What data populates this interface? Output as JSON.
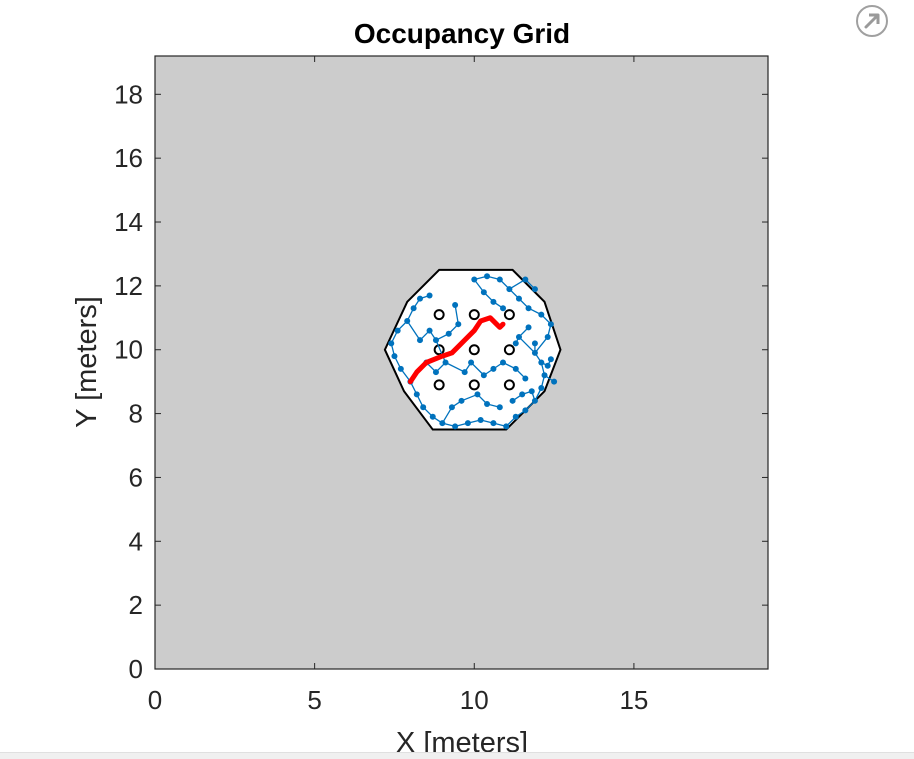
{
  "chart_data": {
    "type": "scatter",
    "title": "Occupancy Grid",
    "xlabel": "X [meters]",
    "ylabel": "Y [meters]",
    "xlim": [
      0,
      19.2
    ],
    "ylim": [
      0,
      19.2
    ],
    "xticks": [
      0,
      5,
      10,
      15
    ],
    "yticks": [
      0,
      2,
      4,
      6,
      8,
      10,
      12,
      14,
      16,
      18
    ],
    "grid": false,
    "background_color": "#cccccc",
    "free_space_color": "#ffffff",
    "boundary_color": "#000000",
    "free_region_outline": [
      [
        8.9,
        12.5
      ],
      [
        11.2,
        12.5
      ],
      [
        12.2,
        11.5
      ],
      [
        12.7,
        10.0
      ],
      [
        12.2,
        8.7
      ],
      [
        11.0,
        7.5
      ],
      [
        8.7,
        7.5
      ],
      [
        7.8,
        8.7
      ],
      [
        7.2,
        10.0
      ],
      [
        7.9,
        11.5
      ]
    ],
    "obstacles": {
      "name": "obstacles",
      "color": "#000000",
      "points": [
        [
          8.9,
          11.1
        ],
        [
          10.0,
          11.1
        ],
        [
          11.1,
          11.1
        ],
        [
          8.9,
          10.0
        ],
        [
          10.0,
          10.0
        ],
        [
          11.1,
          10.0
        ],
        [
          8.9,
          8.9
        ],
        [
          10.0,
          8.9
        ],
        [
          11.1,
          8.9
        ]
      ]
    },
    "tree_nodes": {
      "name": "tree",
      "color": "#0072bd",
      "points": [
        [
          8.0,
          9.0
        ],
        [
          7.7,
          9.4
        ],
        [
          7.5,
          9.8
        ],
        [
          7.4,
          10.2
        ],
        [
          7.6,
          10.6
        ],
        [
          7.9,
          10.9
        ],
        [
          8.1,
          11.3
        ],
        [
          8.3,
          11.6
        ],
        [
          8.6,
          11.7
        ],
        [
          8.2,
          8.6
        ],
        [
          8.4,
          8.2
        ],
        [
          8.7,
          7.9
        ],
        [
          9.0,
          7.7
        ],
        [
          9.4,
          7.6
        ],
        [
          9.8,
          7.7
        ],
        [
          10.2,
          7.8
        ],
        [
          10.6,
          7.7
        ],
        [
          11.0,
          7.6
        ],
        [
          11.3,
          7.9
        ],
        [
          11.6,
          8.1
        ],
        [
          11.9,
          8.4
        ],
        [
          12.1,
          8.8
        ],
        [
          12.2,
          9.2
        ],
        [
          12.1,
          9.6
        ],
        [
          11.9,
          9.9
        ],
        [
          12.3,
          10.4
        ],
        [
          12.4,
          10.8
        ],
        [
          12.1,
          11.1
        ],
        [
          11.7,
          11.3
        ],
        [
          11.4,
          11.6
        ],
        [
          11.1,
          11.9
        ],
        [
          10.8,
          12.2
        ],
        [
          10.4,
          12.3
        ],
        [
          10.0,
          12.2
        ],
        [
          10.3,
          11.8
        ],
        [
          10.6,
          11.5
        ],
        [
          10.9,
          11.3
        ],
        [
          11.6,
          12.2
        ],
        [
          11.9,
          11.9
        ],
        [
          8.3,
          10.3
        ],
        [
          8.6,
          10.6
        ],
        [
          8.8,
          10.3
        ],
        [
          9.2,
          10.5
        ],
        [
          9.5,
          10.8
        ],
        [
          9.4,
          11.4
        ],
        [
          9.1,
          9.6
        ],
        [
          9.7,
          9.3
        ],
        [
          9.9,
          9.6
        ],
        [
          10.3,
          9.2
        ],
        [
          10.6,
          9.4
        ],
        [
          10.9,
          9.6
        ],
        [
          11.3,
          9.4
        ],
        [
          11.6,
          9.1
        ],
        [
          11.8,
          8.7
        ],
        [
          11.5,
          8.6
        ],
        [
          11.4,
          10.4
        ],
        [
          11.7,
          10.7
        ],
        [
          11.9,
          10.2
        ],
        [
          11.3,
          10.2
        ],
        [
          8.8,
          9.3
        ],
        [
          8.5,
          9.6
        ],
        [
          9.3,
          8.2
        ],
        [
          9.6,
          8.4
        ],
        [
          10.1,
          8.6
        ],
        [
          10.4,
          8.3
        ],
        [
          10.8,
          8.2
        ],
        [
          11.2,
          8.4
        ],
        [
          12.3,
          9.5
        ],
        [
          12.5,
          9.0
        ],
        [
          12.4,
          9.7
        ]
      ]
    },
    "path": {
      "name": "path",
      "color": "#ff0000",
      "points": [
        [
          8.0,
          9.0
        ],
        [
          8.2,
          9.3
        ],
        [
          8.5,
          9.6
        ],
        [
          9.0,
          9.8
        ],
        [
          9.3,
          9.9
        ],
        [
          9.7,
          10.3
        ],
        [
          10.0,
          10.6
        ],
        [
          10.2,
          10.9
        ],
        [
          10.5,
          11.0
        ],
        [
          10.7,
          10.8
        ],
        [
          10.8,
          10.7
        ],
        [
          10.9,
          10.8
        ]
      ]
    }
  },
  "toolbar": {
    "expand_icon": "expand-arrow-icon"
  }
}
